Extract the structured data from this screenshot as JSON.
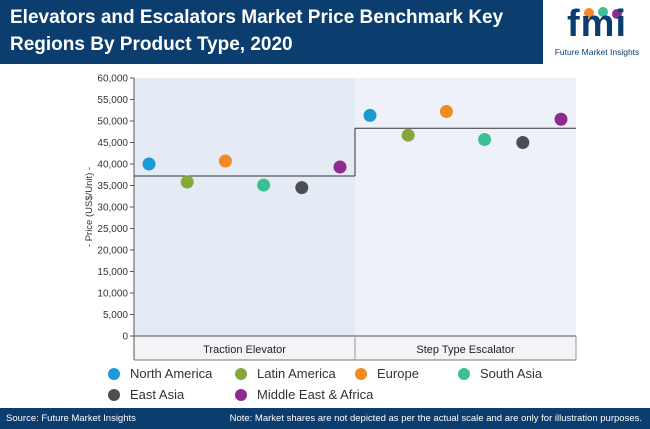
{
  "header": {
    "title": "Elevators and Escalators Market Price Benchmark Key Regions By Product Type, 2020"
  },
  "logo": {
    "text": "fmi",
    "subtitle": "Future Market Insights"
  },
  "footer": {
    "source": "Source: Future Market Insights",
    "note": "Note: Market shares are not depicted as per the actual scale and are only for illustration purposes."
  },
  "colors": {
    "header_bg": "#0b3d6e",
    "plot_bg_left": "#e4ebf4",
    "plot_bg_right": "#eef2f8"
  },
  "chart_data": {
    "type": "scatter",
    "ylabel": "- Price (US$/Unit) -",
    "ylim": [
      0,
      60000
    ],
    "yticks": [
      "0",
      "5,000",
      "10,000",
      "15,000",
      "20,000",
      "25,000",
      "30,000",
      "35,000",
      "40,000",
      "45,000",
      "50,000",
      "55,000",
      "60,000"
    ],
    "ytick_values": [
      0,
      5000,
      10000,
      15000,
      20000,
      25000,
      30000,
      35000,
      40000,
      45000,
      50000,
      55000,
      60000
    ],
    "categories": [
      "Traction Elevator",
      "Step Type Escalator"
    ],
    "average_lines": [
      37200,
      48300
    ],
    "grid": false,
    "legend_position": "bottom",
    "series": [
      {
        "name": "North America",
        "color": "#1b9ad6",
        "values": [
          40000,
          51300
        ]
      },
      {
        "name": "Latin America",
        "color": "#86a83a",
        "values": [
          35800,
          46700
        ]
      },
      {
        "name": "Europe",
        "color": "#f28a24",
        "values": [
          40700,
          52200
        ]
      },
      {
        "name": "South Asia",
        "color": "#3cbf94",
        "values": [
          35100,
          45700
        ]
      },
      {
        "name": "East Asia",
        "color": "#4b4f54",
        "values": [
          34500,
          45000
        ]
      },
      {
        "name": "Middle East & Africa",
        "color": "#8d2c8e",
        "values": [
          39300,
          50400
        ]
      }
    ]
  }
}
